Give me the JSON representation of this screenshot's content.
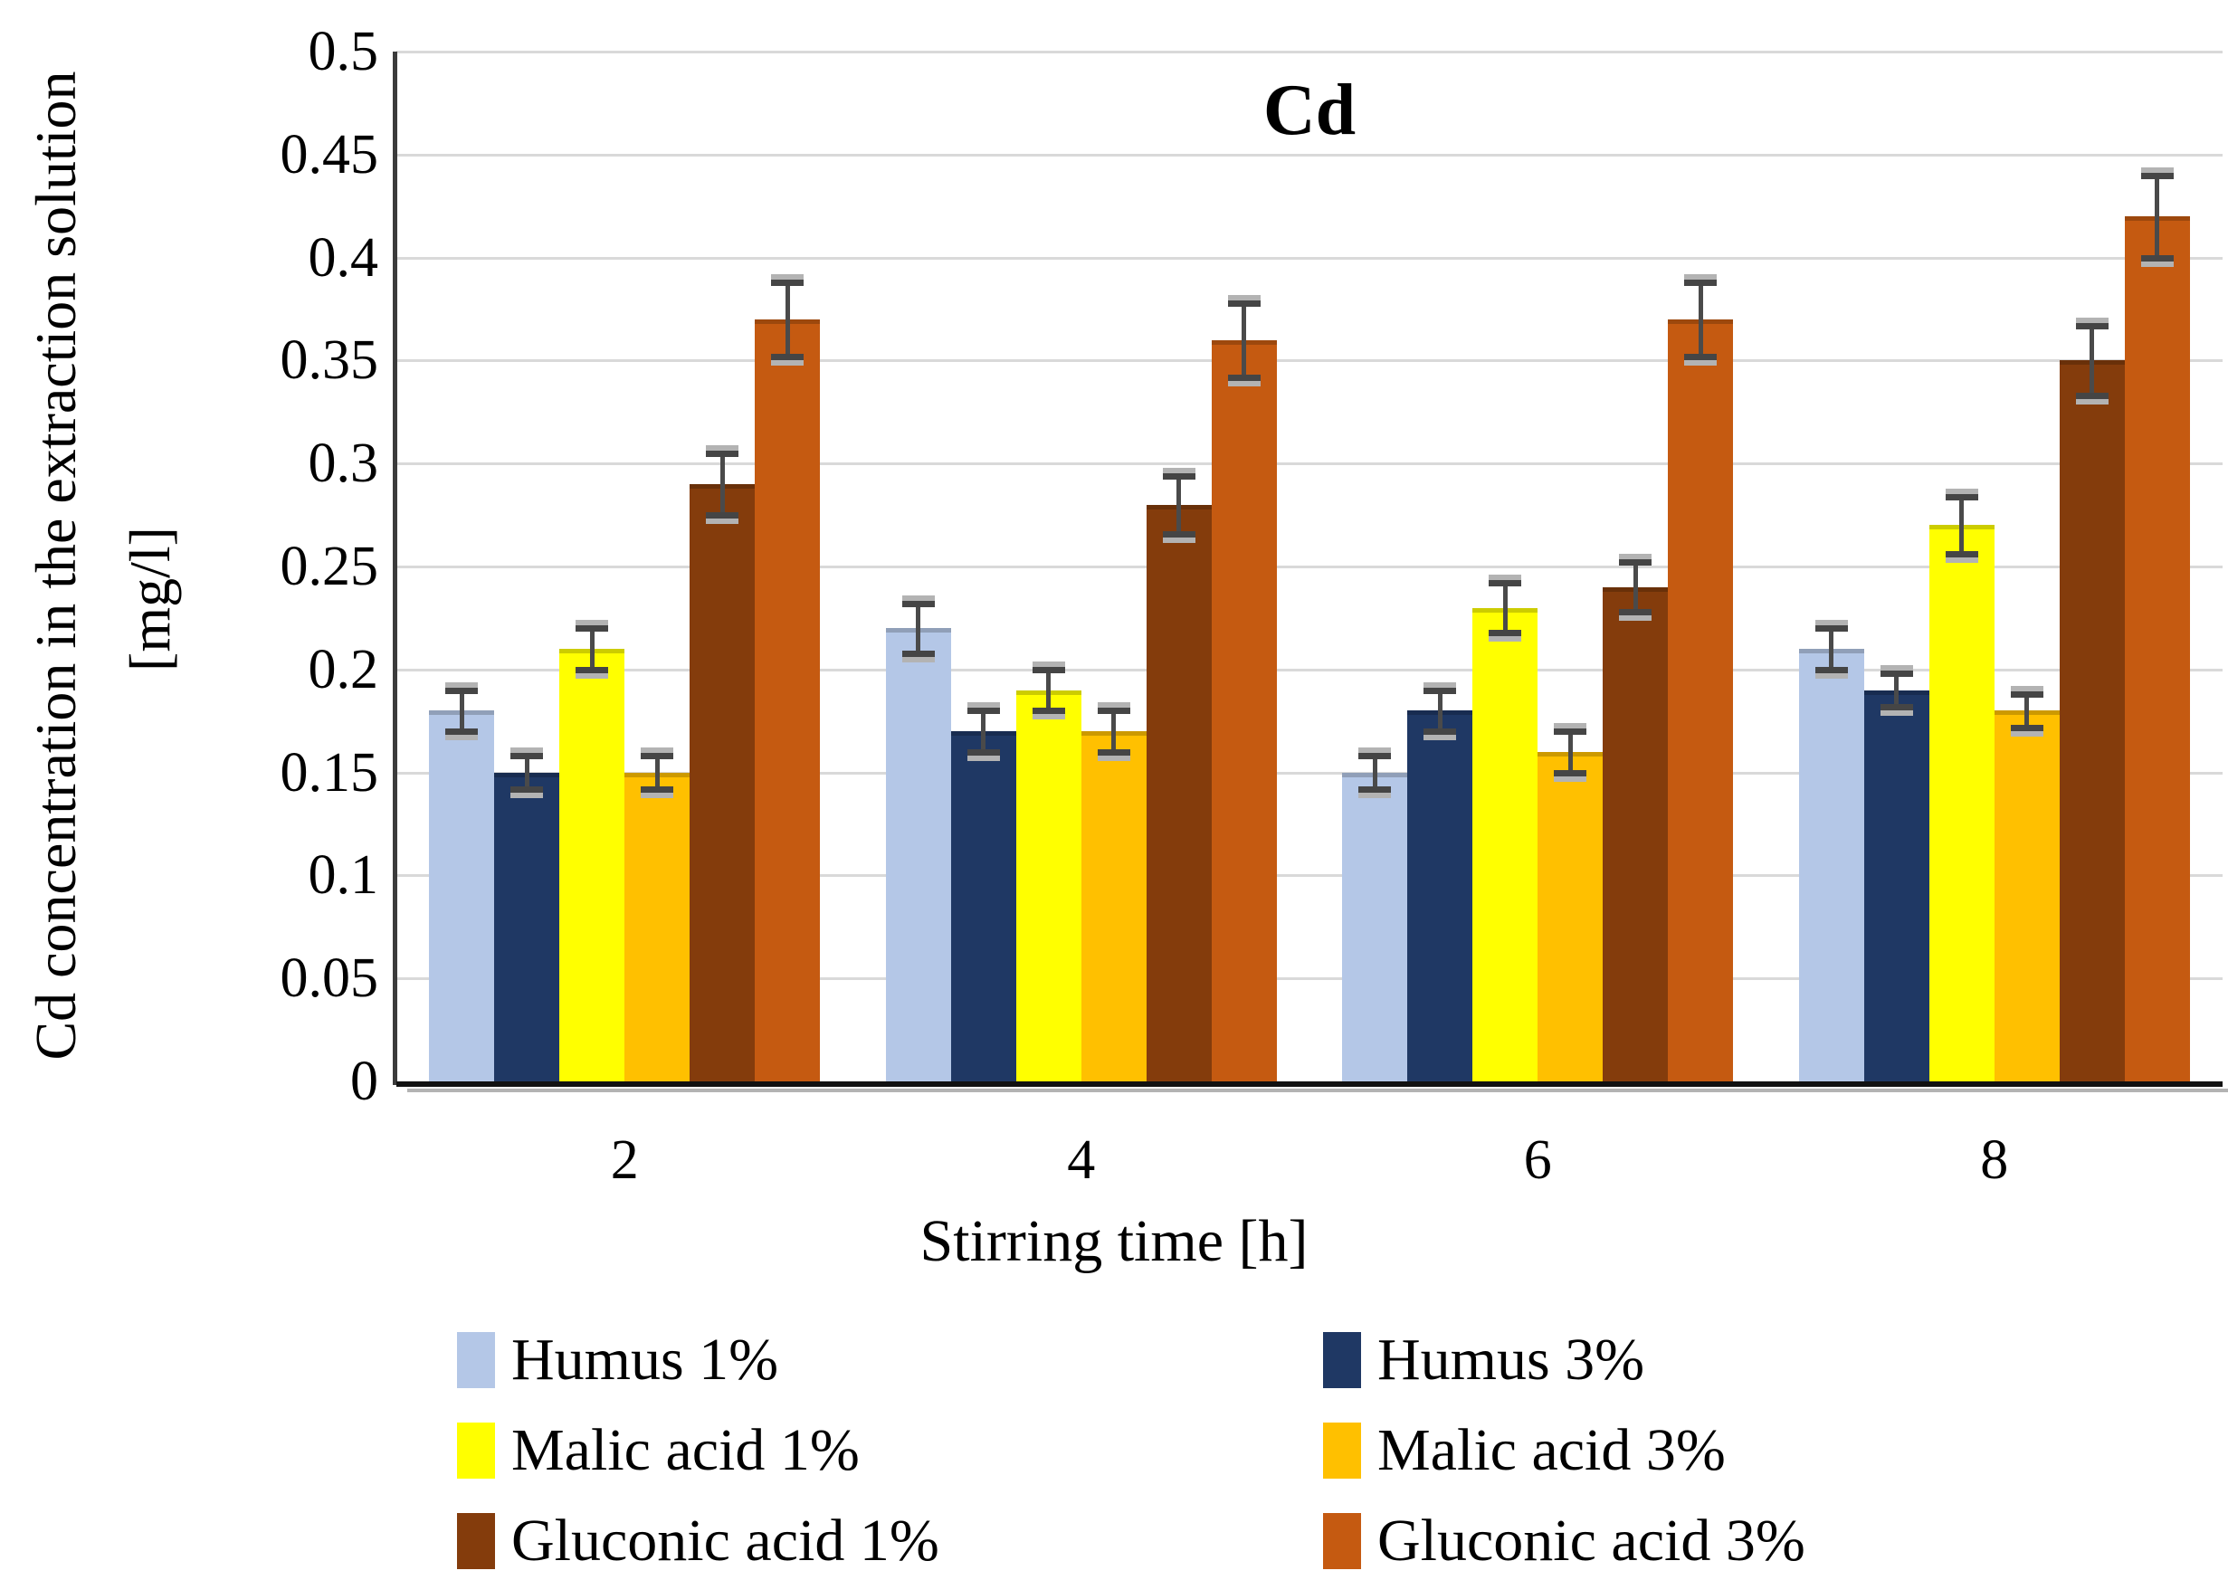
{
  "chart_data": {
    "type": "bar",
    "title": "Cd",
    "xlabel": "Stirring time [h]",
    "ylabel": "Cd concentration in the extraction solution",
    "ylabel_unit": "[mg/l]",
    "categories": [
      "2",
      "4",
      "6",
      "8"
    ],
    "ylim": [
      0,
      0.5
    ],
    "ytick_step": 0.05,
    "yticks": [
      "0.5",
      "0.45",
      "0.4",
      "0.35",
      "0.3",
      "0.25",
      "0.2",
      "0.15",
      "0.1",
      "0.05",
      "0"
    ],
    "grid": true,
    "legend_position": "bottom-two-columns",
    "error_bars": true,
    "series": [
      {
        "name": "Humus 1%",
        "color": "#b4c7e7",
        "values": [
          0.18,
          0.22,
          0.15,
          0.21
        ],
        "errors": [
          0.01,
          0.012,
          0.008,
          0.01
        ]
      },
      {
        "name": "Humus 3%",
        "color": "#1f3864",
        "values": [
          0.15,
          0.17,
          0.18,
          0.19
        ],
        "errors": [
          0.008,
          0.01,
          0.01,
          0.008
        ]
      },
      {
        "name": "Malic acid 1%",
        "color": "#ffff00",
        "values": [
          0.21,
          0.19,
          0.23,
          0.27
        ],
        "errors": [
          0.01,
          0.01,
          0.012,
          0.014
        ]
      },
      {
        "name": "Malic acid 3%",
        "color": "#ffc000",
        "values": [
          0.15,
          0.17,
          0.16,
          0.18
        ],
        "errors": [
          0.008,
          0.01,
          0.01,
          0.008
        ]
      },
      {
        "name": "Gluconic acid 1%",
        "color": "#843c0c",
        "values": [
          0.29,
          0.28,
          0.24,
          0.35
        ],
        "errors": [
          0.015,
          0.014,
          0.012,
          0.017
        ]
      },
      {
        "name": "Gluconic acid 3%",
        "color": "#c55a11",
        "values": [
          0.37,
          0.36,
          0.37,
          0.42
        ],
        "errors": [
          0.018,
          0.018,
          0.018,
          0.02
        ]
      }
    ],
    "colors": {
      "gridline": "#d9d9d9",
      "y_axis_line": "#3b3b3b",
      "x_axis_line": "#111111",
      "x_axis_shadow": "#b3b3b3",
      "error_bar": "#4a4a4a",
      "error_bar_shadow": "#b3b3b3",
      "background": "#ffffff",
      "text": "#000000"
    }
  }
}
